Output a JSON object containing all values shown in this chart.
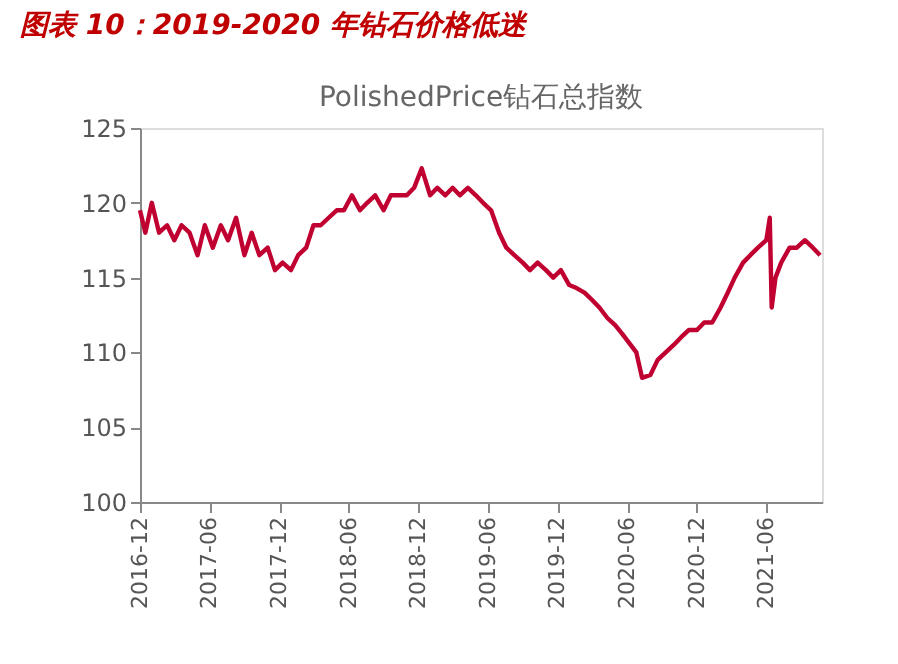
{
  "chart_data": {
    "type": "line",
    "title": "图表 10：2019-2020 年钻石价格低迷",
    "subtitle": "PolishedPrice钻石总指数",
    "x": [
      "2016-12-01",
      "2016-12-15",
      "2017-01-01",
      "2017-01-20",
      "2017-02-10",
      "2017-03-01",
      "2017-03-20",
      "2017-04-10",
      "2017-05-01",
      "2017-05-20",
      "2017-06-10",
      "2017-07-01",
      "2017-07-20",
      "2017-08-10",
      "2017-09-01",
      "2017-09-20",
      "2017-10-10",
      "2017-11-01",
      "2017-11-20",
      "2017-12-10",
      "2018-01-01",
      "2018-01-20",
      "2018-02-10",
      "2018-03-01",
      "2018-03-20",
      "2018-04-10",
      "2018-05-01",
      "2018-05-20",
      "2018-06-10",
      "2018-07-01",
      "2018-07-20",
      "2018-08-10",
      "2018-09-01",
      "2018-09-20",
      "2018-10-10",
      "2018-11-01",
      "2018-11-20",
      "2018-12-10",
      "2019-01-01",
      "2019-01-20",
      "2019-02-10",
      "2019-03-01",
      "2019-03-20",
      "2019-04-10",
      "2019-05-01",
      "2019-05-20",
      "2019-06-10",
      "2019-07-01",
      "2019-07-20",
      "2019-08-10",
      "2019-09-01",
      "2019-09-20",
      "2019-10-10",
      "2019-11-01",
      "2019-11-20",
      "2019-12-10",
      "2020-01-01",
      "2020-01-20",
      "2020-02-10",
      "2020-03-01",
      "2020-03-20",
      "2020-04-10",
      "2020-05-01",
      "2020-05-20",
      "2020-06-10",
      "2020-06-25",
      "2020-07-10",
      "2020-08-01",
      "2020-08-20",
      "2020-09-10",
      "2020-10-01",
      "2020-10-20",
      "2020-11-10",
      "2020-12-01",
      "2020-12-20",
      "2021-01-10",
      "2021-02-01",
      "2021-02-20",
      "2021-03-10",
      "2021-04-01",
      "2021-04-20",
      "2021-05-10",
      "2021-06-01",
      "2021-06-10",
      "2021-06-15",
      "2021-06-25",
      "2021-07-10",
      "2021-08-01",
      "2021-08-20",
      "2021-09-10",
      "2021-10-01",
      "2021-10-20"
    ],
    "series": [
      {
        "color": "#c00030",
        "values": [
          119.5,
          118,
          120,
          118,
          118.5,
          117.5,
          118.5,
          118,
          116.5,
          118.5,
          117,
          118.5,
          117.5,
          119,
          116.5,
          118,
          116.5,
          117,
          115.5,
          116,
          115.5,
          116.5,
          117,
          118.5,
          118.5,
          119,
          119.5,
          119.5,
          120.5,
          119.5,
          120,
          120.5,
          119.5,
          120.5,
          120.5,
          120.5,
          121,
          122.3,
          120.5,
          121,
          120.5,
          121,
          120.5,
          121,
          120.5,
          120,
          119.5,
          118,
          117,
          116.5,
          116,
          115.5,
          116,
          115.5,
          115,
          115.5,
          114.5,
          114.3,
          114,
          113.5,
          113,
          112.3,
          111.8,
          111.2,
          110.5,
          110,
          108.3,
          108.5,
          109.5,
          110,
          110.5,
          111,
          111.5,
          111.5,
          112,
          112,
          113,
          114,
          115,
          116,
          116.5,
          117,
          117.5,
          119,
          113,
          115,
          116,
          117,
          117,
          117.5,
          117,
          116.5
        ]
      }
    ],
    "xlim": [
      "2016-12-01",
      "2021-10-25"
    ],
    "xticks": [
      {
        "value": "2016-12-01",
        "label": "2016-12"
      },
      {
        "value": "2017-06-01",
        "label": "2017-06"
      },
      {
        "value": "2017-12-01",
        "label": "2017-12"
      },
      {
        "value": "2018-06-01",
        "label": "2018-06"
      },
      {
        "value": "2018-12-01",
        "label": "2018-12"
      },
      {
        "value": "2019-06-01",
        "label": "2019-06"
      },
      {
        "value": "2019-12-01",
        "label": "2019-12"
      },
      {
        "value": "2020-06-01",
        "label": "2020-06"
      },
      {
        "value": "2020-12-01",
        "label": "2020-12"
      },
      {
        "value": "2021-06-01",
        "label": "2021-06"
      }
    ],
    "ylim": [
      100,
      125
    ],
    "yticks": [
      100,
      105,
      110,
      115,
      120,
      125
    ],
    "grid": false,
    "legend": false,
    "line_style": "solid"
  }
}
